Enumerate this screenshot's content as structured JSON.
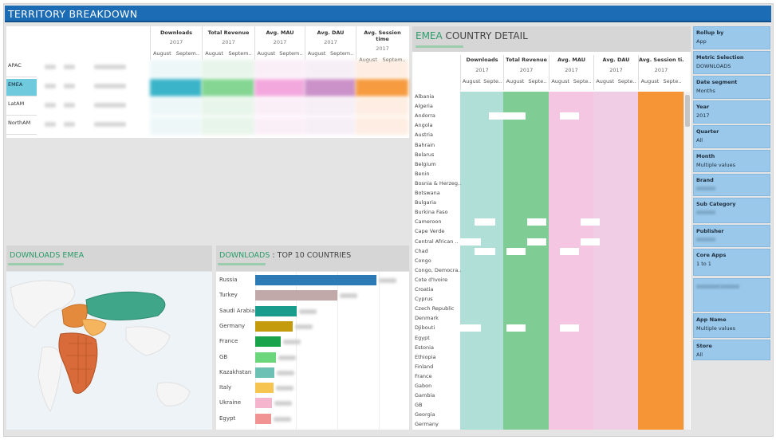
{
  "title": "TERRITORY BREAKDOWN",
  "metrics": [
    "Downloads",
    "Total Revenue",
    "Avg. MAU",
    "Avg. DAU",
    "Avg. Session time"
  ],
  "cd_metrics": [
    "Downloads",
    "Total Revenue",
    "Avg. MAU",
    "Avg. DAU",
    "Avg. Session ti.."
  ],
  "year": "2017",
  "months": [
    "August",
    "Septem.."
  ],
  "cd_months": [
    "August",
    "Septe.."
  ],
  "regions": [
    "APAC",
    "EMEA",
    "LatAM",
    "NorthAM"
  ],
  "selected_region": "EMEA",
  "country_detail": {
    "prefix": "EMEA",
    "rest": " COUNTRY DETAIL"
  },
  "countries": [
    "Albania",
    "Algeria",
    "Andorra",
    "Angola",
    "Austria",
    "Bahrain",
    "Belarus",
    "Belgium",
    "Benin",
    "Bosnia & Herzeg..",
    "Botswana",
    "Bulgaria",
    "Burkina Faso",
    "Cameroon",
    "Cape Verde",
    "Central African ..",
    "Chad",
    "Congo",
    "Congo, Democra..",
    "Cote d'Ivoire",
    "Croatia",
    "Cyprus",
    "Czech Republic",
    "Denmark",
    "Djibouti",
    "Egypt",
    "Estonia",
    "Ethiopia",
    "Finland",
    "France",
    "Gabon",
    "Gambia",
    "GB",
    "Georgia",
    "Germany"
  ],
  "map_panel": {
    "title": "DOWNLOADS EMEA"
  },
  "bar_panel": {
    "title_prefix": "DOWNLOADS",
    "title_rest": " : TOP 10 COUNTRIES"
  },
  "top10": [
    {
      "name": "Russia",
      "value": 100,
      "color": "#2c7bb6"
    },
    {
      "name": "Turkey",
      "value": 68,
      "color": "#c2a9a9"
    },
    {
      "name": "Saudi Arabia",
      "value": 34,
      "color": "#1a9c8c"
    },
    {
      "name": "Germany",
      "value": 31,
      "color": "#c49b0c"
    },
    {
      "name": "France",
      "value": 21,
      "color": "#1aa34a"
    },
    {
      "name": "GB",
      "value": 17,
      "color": "#6cd67c"
    },
    {
      "name": "Kazakhstan",
      "value": 16,
      "color": "#6cc1b4"
    },
    {
      "name": "Italy",
      "value": 15,
      "color": "#f5c451"
    },
    {
      "name": "Ukraine",
      "value": 14,
      "color": "#f5b5cc"
    },
    {
      "name": "Egypt",
      "value": 13,
      "color": "#f29393"
    }
  ],
  "filters": [
    {
      "label": "Rollup by",
      "value": "App"
    },
    {
      "label": "Metric Selection",
      "value": "DOWNLOADS"
    },
    {
      "label": "Date segment",
      "value": "Months"
    },
    {
      "label": "Year",
      "value": "2017"
    },
    {
      "label": "Quarter",
      "value": "All"
    },
    {
      "label": "Month",
      "value": "Multiple values"
    },
    {
      "label": "Brand",
      "value": ""
    },
    {
      "label": "Sub Category",
      "value": ""
    },
    {
      "label": "Publisher",
      "value": ""
    },
    {
      "label": "Core Apps",
      "value": "1 to 1"
    },
    {
      "label": "",
      "value": ""
    },
    {
      "label": "App Name",
      "value": "Multiple values"
    },
    {
      "label": "Store",
      "value": "All"
    }
  ],
  "colors": {
    "accent": "#1b6bb5",
    "selected": "#6ecadc",
    "downloads": "#a7dcd4",
    "revenue": "#72c78a",
    "mau": "#f4c0de",
    "dau": "#efc6e2",
    "session": "#f58a1f"
  }
}
